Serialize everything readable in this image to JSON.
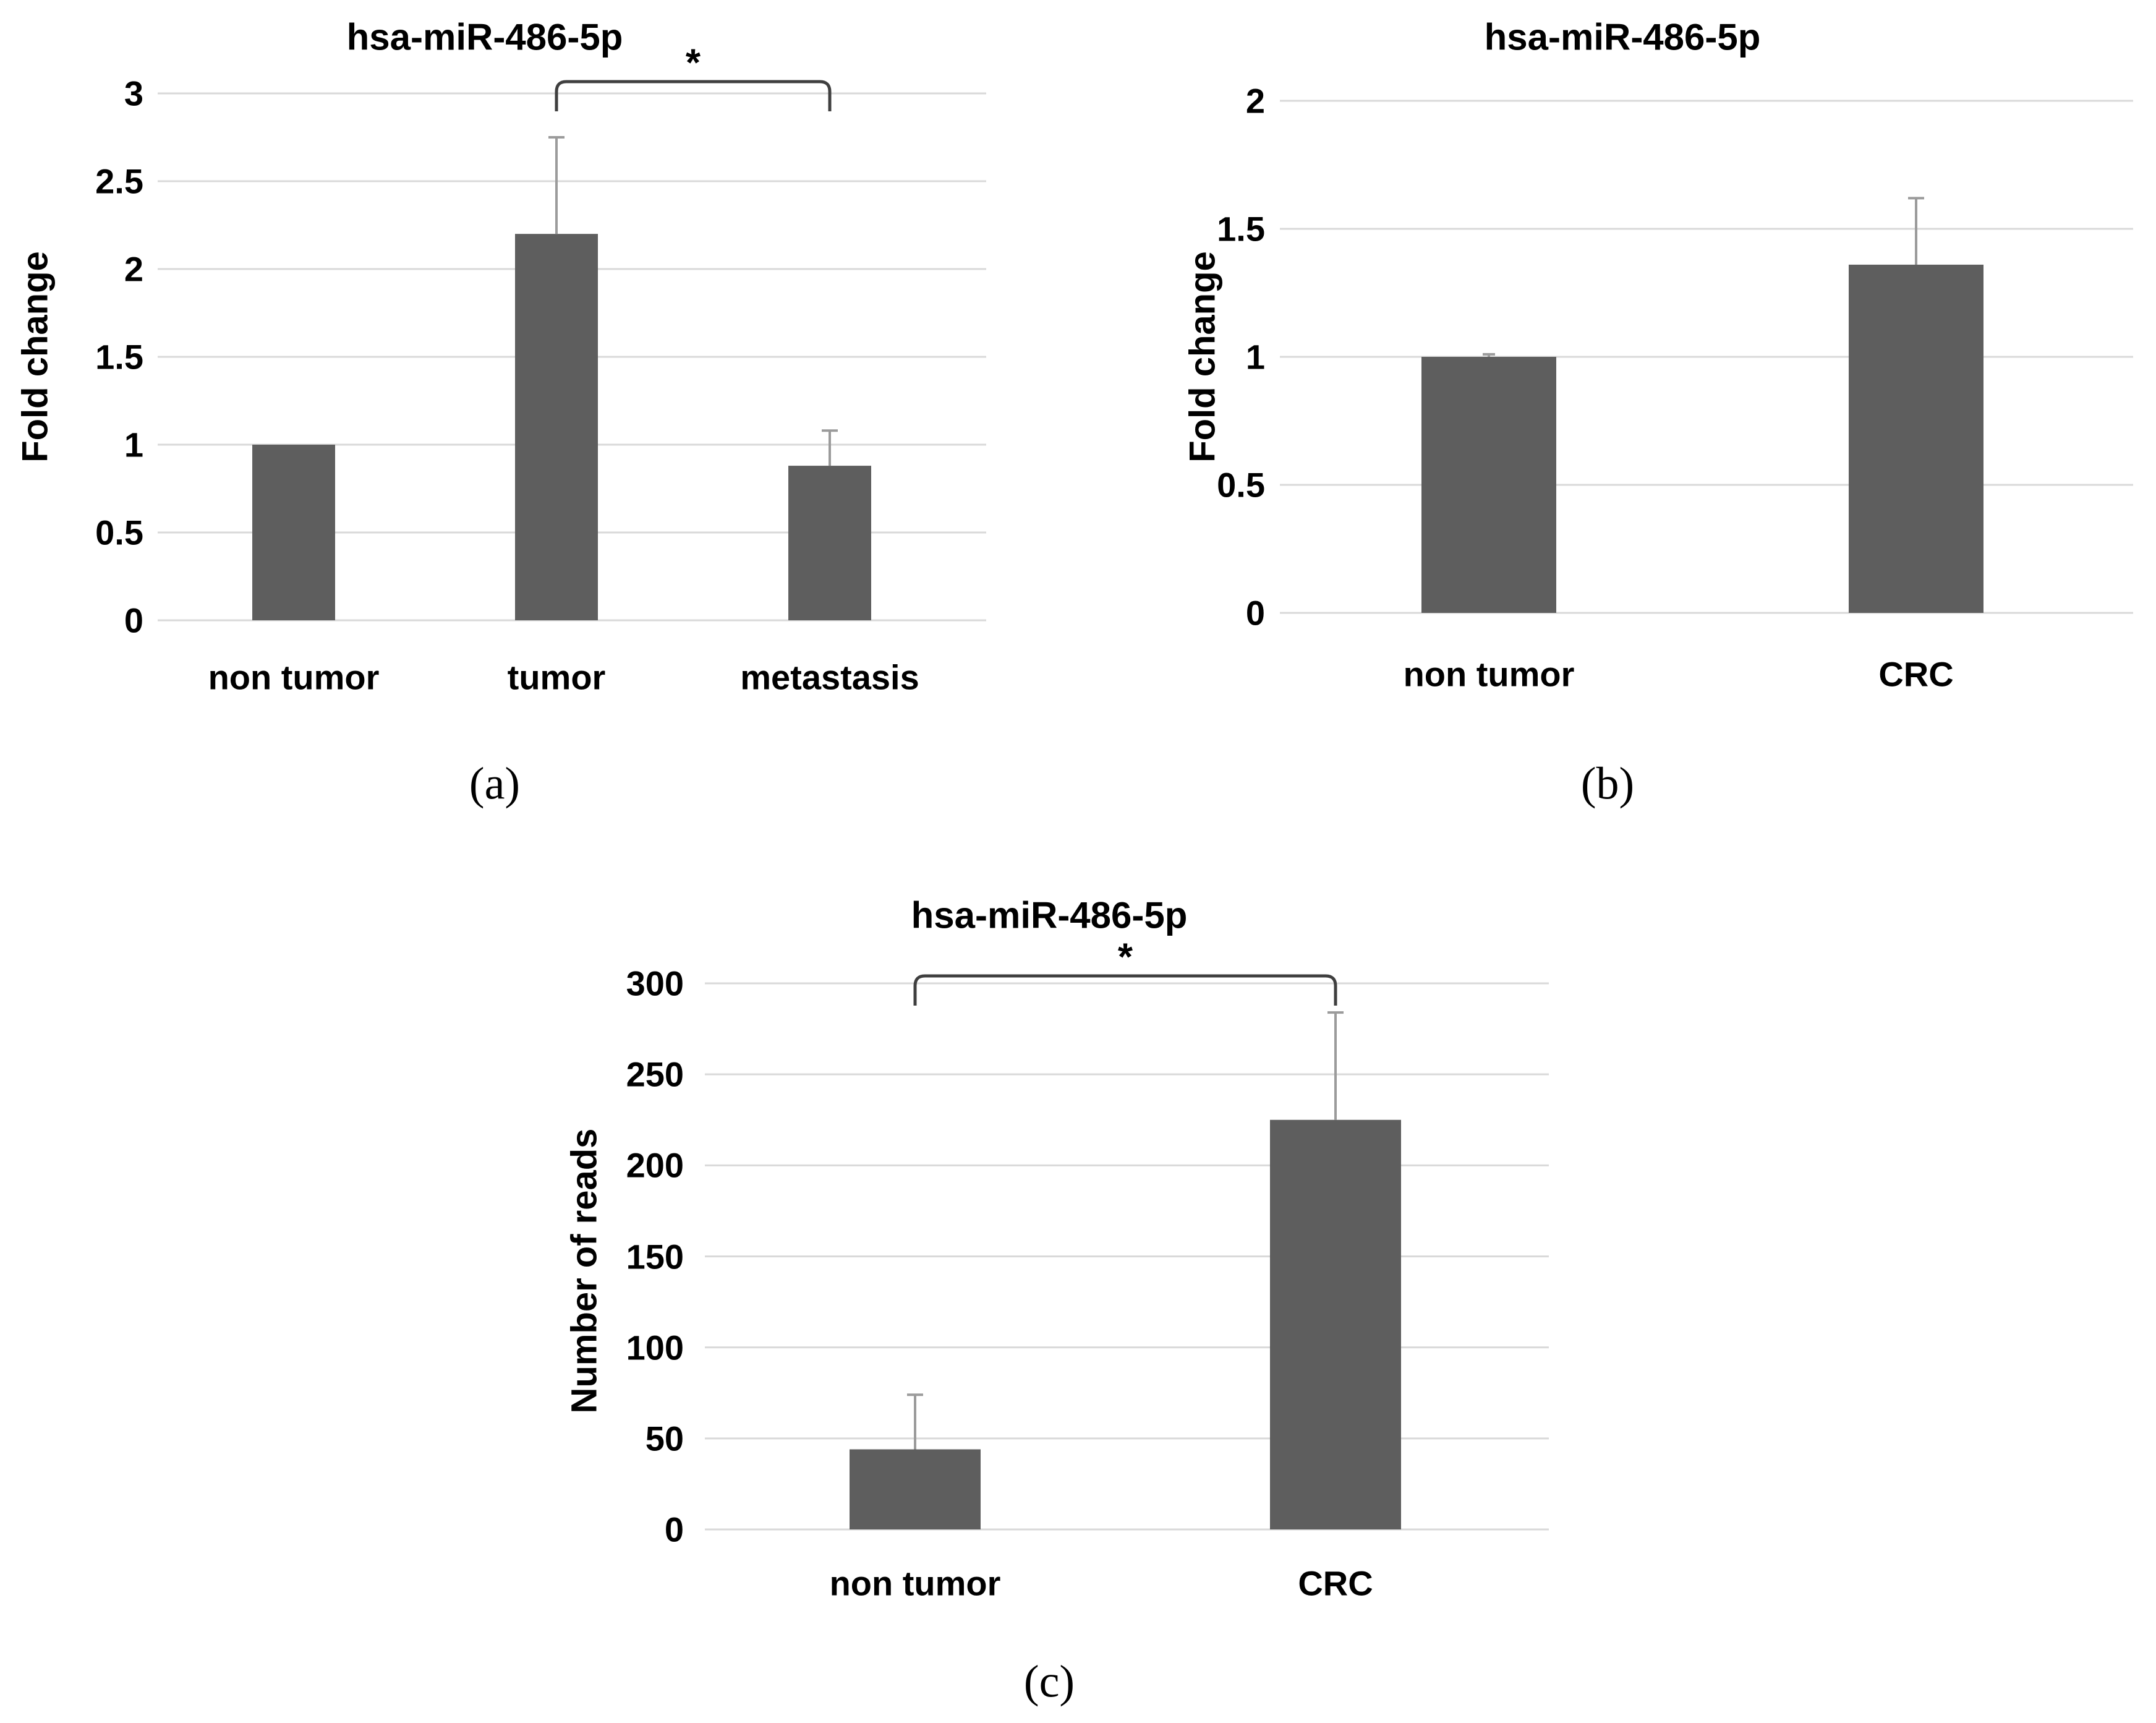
{
  "colors": {
    "bar": "#5E5E5E",
    "gridline": "#D9D9D9",
    "error_bar": "#9B9B9B",
    "bracket": "#3F3F3F",
    "text": "#000000",
    "background": "#FFFFFF"
  },
  "chart_data": [
    {
      "id": "a",
      "panel_label": "(a)",
      "type": "bar",
      "title": "hsa-miR-486-5p",
      "xlabel": "",
      "ylabel": "Fold change",
      "categories": [
        "non tumor",
        "tumor",
        "metastasis"
      ],
      "values": [
        1.0,
        2.2,
        0.88
      ],
      "error_up": [
        0,
        0.55,
        0.2
      ],
      "ylim": [
        0,
        3
      ],
      "ytick_step": 0.5,
      "yticks": [
        {
          "value": 0,
          "label": "0"
        },
        {
          "value": 0.5,
          "label": "0.5"
        },
        {
          "value": 1,
          "label": "1"
        },
        {
          "value": 1.5,
          "label": "1.5"
        },
        {
          "value": 2,
          "label": "2"
        },
        {
          "value": 2.5,
          "label": "2.5"
        },
        {
          "value": 3,
          "label": "3"
        }
      ],
      "grid": true,
      "legend": null,
      "significance": {
        "between": [
          1,
          2
        ],
        "label": "*"
      }
    },
    {
      "id": "b",
      "panel_label": "(b)",
      "type": "bar",
      "title": "hsa-miR-486-5p",
      "xlabel": "",
      "ylabel": "Fold change",
      "categories": [
        "non tumor",
        "CRC"
      ],
      "values": [
        1.0,
        1.36
      ],
      "error_up": [
        0.01,
        0.26
      ],
      "ylim": [
        0,
        2
      ],
      "ytick_step": 0.5,
      "yticks": [
        {
          "value": 0,
          "label": "0"
        },
        {
          "value": 0.5,
          "label": "0.5"
        },
        {
          "value": 1,
          "label": "1"
        },
        {
          "value": 1.5,
          "label": "1.5"
        },
        {
          "value": 2,
          "label": "2"
        }
      ],
      "grid": true,
      "legend": null,
      "significance": null
    },
    {
      "id": "c",
      "panel_label": "(c)",
      "type": "bar",
      "title": "hsa-miR-486-5p",
      "xlabel": "",
      "ylabel": "Number of reads",
      "categories": [
        "non tumor",
        "CRC"
      ],
      "values": [
        44,
        225
      ],
      "error_up": [
        30,
        59
      ],
      "ylim": [
        0,
        300
      ],
      "ytick_step": 50,
      "yticks": [
        {
          "value": 0,
          "label": "0"
        },
        {
          "value": 50,
          "label": "50"
        },
        {
          "value": 100,
          "label": "100"
        },
        {
          "value": 150,
          "label": "150"
        },
        {
          "value": 200,
          "label": "200"
        },
        {
          "value": 250,
          "label": "250"
        },
        {
          "value": 300,
          "label": "300"
        }
      ],
      "grid": true,
      "legend": null,
      "significance": {
        "between": [
          0,
          1
        ],
        "label": "*"
      }
    }
  ]
}
